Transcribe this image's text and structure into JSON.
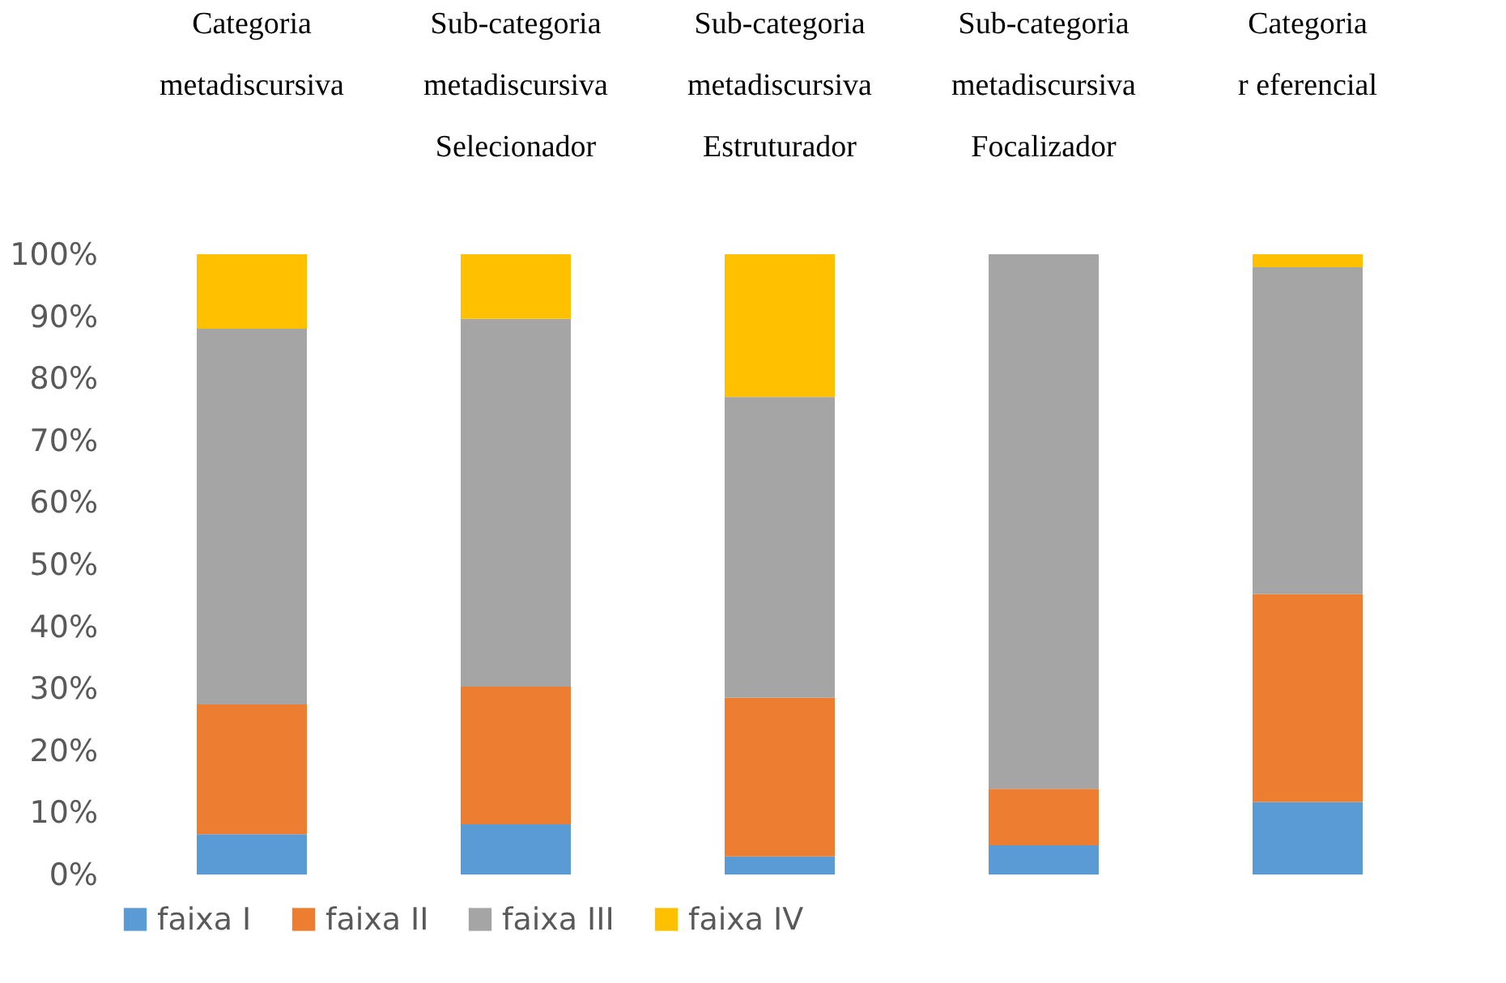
{
  "chart_data": {
    "type": "bar",
    "stacked": true,
    "categories": [
      "Categoria metadiscursiva",
      "Sub-categoria metadiscursiva Selecionador",
      "Sub-categoria metadiscursiva Estruturador",
      "Sub-categoria metadiscursiva Focalizador",
      "Categoria r eferencial"
    ],
    "series": [
      {
        "name": "faixa I",
        "color": "#5b9bd5",
        "values": [
          6.5,
          8.1,
          2.9,
          4.7,
          11.7
        ]
      },
      {
        "name": "faixa II",
        "color": "#ed7d31",
        "values": [
          20.9,
          22.2,
          25.6,
          9.1,
          33.5
        ]
      },
      {
        "name": "faixa III",
        "color": "#a5a5a5",
        "values": [
          60.6,
          59.3,
          48.5,
          86.2,
          52.7
        ]
      },
      {
        "name": "faixa IV",
        "color": "#ffc000",
        "values": [
          12,
          10.4,
          23,
          0,
          2.1
        ]
      }
    ],
    "ylim": [
      0,
      100
    ],
    "yticks": [
      {
        "value": 0,
        "label": "0%"
      },
      {
        "value": 10,
        "label": "10%"
      },
      {
        "value": 20,
        "label": "20%"
      },
      {
        "value": 30,
        "label": "30%"
      },
      {
        "value": 40,
        "label": "40%"
      },
      {
        "value": 50,
        "label": "50%"
      },
      {
        "value": 60,
        "label": "60%"
      },
      {
        "value": 70,
        "label": "70%"
      },
      {
        "value": 80,
        "label": "80%"
      },
      {
        "value": 90,
        "label": "90%"
      },
      {
        "value": 100,
        "label": "100%"
      }
    ],
    "grid": false,
    "legend": "bottom"
  }
}
